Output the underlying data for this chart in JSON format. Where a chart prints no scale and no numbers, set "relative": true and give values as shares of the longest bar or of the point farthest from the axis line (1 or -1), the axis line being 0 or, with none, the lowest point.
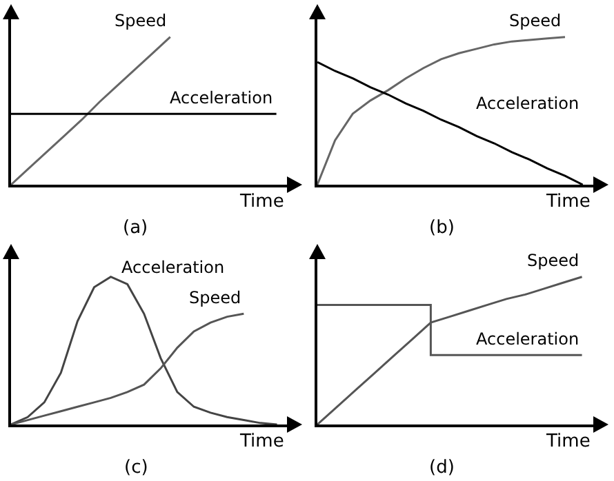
{
  "chart_data": [
    {
      "type": "line",
      "relative": true,
      "title": "(a)",
      "xlabel": "Time",
      "legend": false,
      "categories": [
        null,
        null,
        null,
        null,
        null,
        null,
        null,
        null,
        null,
        null,
        null,
        null,
        null,
        null,
        null,
        null
      ],
      "series": [
        {
          "name": "Speed",
          "color": "#666666",
          "values": [
            0,
            0.11,
            0.22,
            0.33,
            0.44,
            0.56,
            0.67,
            0.78,
            0.89,
            1,
            null,
            null,
            null,
            null,
            null,
            null
          ]
        },
        {
          "name": "Acceleration",
          "color": "#000000",
          "values": [
            0.48,
            0.48,
            0.48,
            0.48,
            0.48,
            0.48,
            0.48,
            0.48,
            0.48,
            0.48,
            0.48,
            0.48,
            0.48,
            0.48,
            0.48,
            0.48
          ]
        }
      ]
    },
    {
      "type": "line",
      "relative": true,
      "title": "(b)",
      "xlabel": "Time",
      "legend": false,
      "categories": [
        null,
        null,
        null,
        null,
        null,
        null,
        null,
        null,
        null,
        null,
        null,
        null,
        null,
        null,
        null,
        null
      ],
      "series": [
        {
          "name": "Speed",
          "color": "#666666",
          "values": [
            0,
            0.3,
            0.48,
            0.57,
            0.64,
            0.72,
            0.79,
            0.85,
            0.89,
            0.92,
            0.95,
            0.97,
            0.98,
            0.99,
            1,
            null
          ]
        },
        {
          "name": "Acceleration",
          "color": "#000000",
          "values": [
            0.83,
            0.77,
            0.72,
            0.66,
            0.61,
            0.55,
            0.5,
            0.44,
            0.39,
            0.33,
            0.28,
            0.22,
            0.17,
            0.11,
            0.06,
            0
          ]
        }
      ]
    },
    {
      "type": "line",
      "relative": true,
      "title": "(c)",
      "xlabel": "Time",
      "legend": false,
      "categories": [
        null,
        null,
        null,
        null,
        null,
        null,
        null,
        null,
        null,
        null,
        null,
        null,
        null,
        null,
        null,
        null,
        null
      ],
      "series": [
        {
          "name": "Acceleration",
          "color": "#444444",
          "values": [
            0,
            0.05,
            0.15,
            0.35,
            0.7,
            0.93,
            1,
            0.95,
            0.75,
            0.45,
            0.22,
            0.12,
            0.08,
            0.05,
            0.03,
            0.01,
            0
          ]
        },
        {
          "name": "Speed",
          "color": "#555555",
          "values": [
            0,
            0.03,
            0.06,
            0.09,
            0.12,
            0.15,
            0.18,
            0.22,
            0.27,
            0.38,
            0.52,
            0.63,
            0.69,
            0.73,
            0.75,
            null,
            null
          ]
        }
      ]
    },
    {
      "type": "line",
      "relative": true,
      "title": "(d)",
      "xlabel": "Time",
      "legend": false,
      "categories": [
        null,
        null,
        null,
        null,
        null,
        null,
        null,
        null,
        null,
        null,
        null,
        null,
        null,
        null,
        null
      ],
      "series": [
        {
          "name": "Speed",
          "color": "#555555",
          "values": [
            0,
            0.115,
            0.23,
            0.345,
            0.46,
            0.575,
            0.69,
            0.73,
            0.77,
            0.81,
            0.85,
            0.88,
            0.92,
            0.96,
            1
          ]
        },
        {
          "name": "Acceleration",
          "type": "step",
          "color": "#555555",
          "values": [
            0.81,
            0.81,
            0.81,
            0.81,
            0.81,
            0.81,
            0.47,
            0.47,
            0.47,
            0.47,
            0.47,
            0.47,
            0.47,
            0.47,
            0.47
          ]
        }
      ]
    }
  ]
}
